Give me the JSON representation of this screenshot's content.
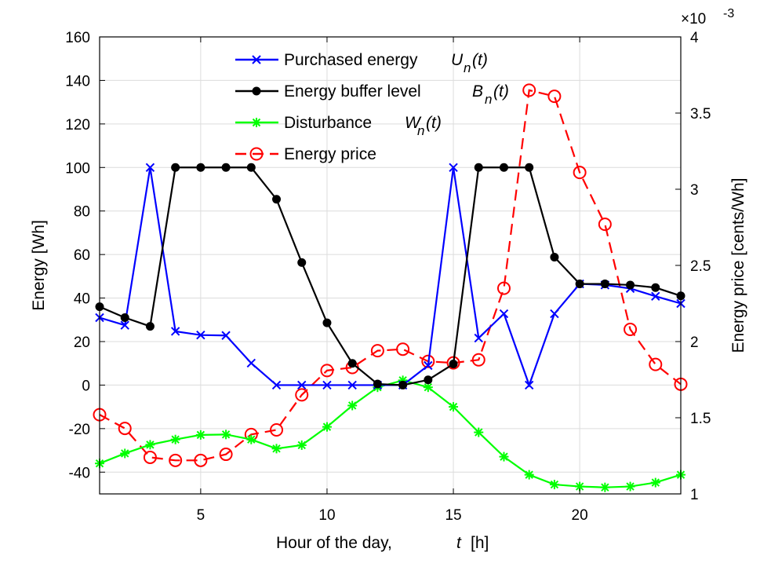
{
  "chart_data": {
    "type": "line",
    "title": "",
    "xlabel": "Hour of the day,",
    "xlabel_var": "t",
    "xlabel_unit": "[h]",
    "ylabel_left": "Energy [Wh]",
    "ylabel_right": "Energy price [cents/Wh]",
    "right_axis_multiplier": "×10",
    "right_axis_exponent": "-3",
    "xlim": [
      1,
      24
    ],
    "ylim_left": [
      -50,
      160
    ],
    "ylim_right": [
      1,
      4
    ],
    "x_ticks": [
      5,
      10,
      15,
      20
    ],
    "y_ticks_left": [
      -40,
      -20,
      0,
      20,
      40,
      60,
      80,
      100,
      120,
      140,
      160
    ],
    "y_ticks_right": [
      1,
      1.5,
      2,
      2.5,
      3,
      3.5,
      4
    ],
    "grid": true,
    "legend_position": "top-center",
    "x": [
      1,
      2,
      3,
      4,
      5,
      6,
      7,
      8,
      9,
      10,
      11,
      12,
      13,
      14,
      15,
      16,
      17,
      18,
      19,
      20,
      21,
      22,
      23,
      24
    ],
    "series": [
      {
        "name": "Purchased energy",
        "symbol": "U",
        "subscript": "n",
        "arg": "(t)",
        "axis": "left",
        "color": "#0000ff",
        "marker": "x",
        "linestyle": "solid",
        "values": [
          31,
          27.5,
          100,
          24.7,
          23,
          22.8,
          10.1,
          0,
          0,
          0,
          0,
          0,
          0,
          9,
          100,
          21.6,
          32.8,
          0,
          32.8,
          46.5,
          46,
          44.4,
          40.8,
          37.5
        ]
      },
      {
        "name": "Energy buffer level",
        "symbol": "B",
        "subscript": "n",
        "arg": "(t)",
        "axis": "left",
        "color": "#000000",
        "marker": "dot",
        "linestyle": "solid",
        "values": [
          36,
          31,
          27,
          100,
          100,
          100,
          100,
          85.4,
          56.3,
          28.6,
          10,
          0.5,
          0,
          2.4,
          9.7,
          100,
          100,
          100,
          58.8,
          46.5,
          46.5,
          46,
          44.8,
          41
        ]
      },
      {
        "name": "Disturbance",
        "symbol": "W",
        "subscript": "n",
        "arg": "(t)",
        "axis": "left",
        "color": "#00ff00",
        "marker": "asterisk",
        "linestyle": "solid",
        "values": [
          -36,
          -31.4,
          -27.4,
          -25,
          -22.9,
          -22.7,
          -25,
          -29.2,
          -27.6,
          -19.2,
          -9.4,
          -1,
          2.2,
          -1,
          -10,
          -21.7,
          -32.9,
          -41.2,
          -45.7,
          -46.6,
          -47,
          -46.6,
          -44.8,
          -41.2
        ]
      },
      {
        "name": "Energy price",
        "symbol": "",
        "subscript": "",
        "arg": "",
        "axis": "right",
        "color": "#ff0000",
        "marker": "circle",
        "linestyle": "dashed",
        "values": [
          1.52,
          1.43,
          1.24,
          1.22,
          1.22,
          1.26,
          1.39,
          1.42,
          1.65,
          1.81,
          1.83,
          1.94,
          1.95,
          1.87,
          1.86,
          1.88,
          2.35,
          3.65,
          3.61,
          3.11,
          2.77,
          2.08,
          1.85,
          1.72
        ]
      }
    ]
  }
}
